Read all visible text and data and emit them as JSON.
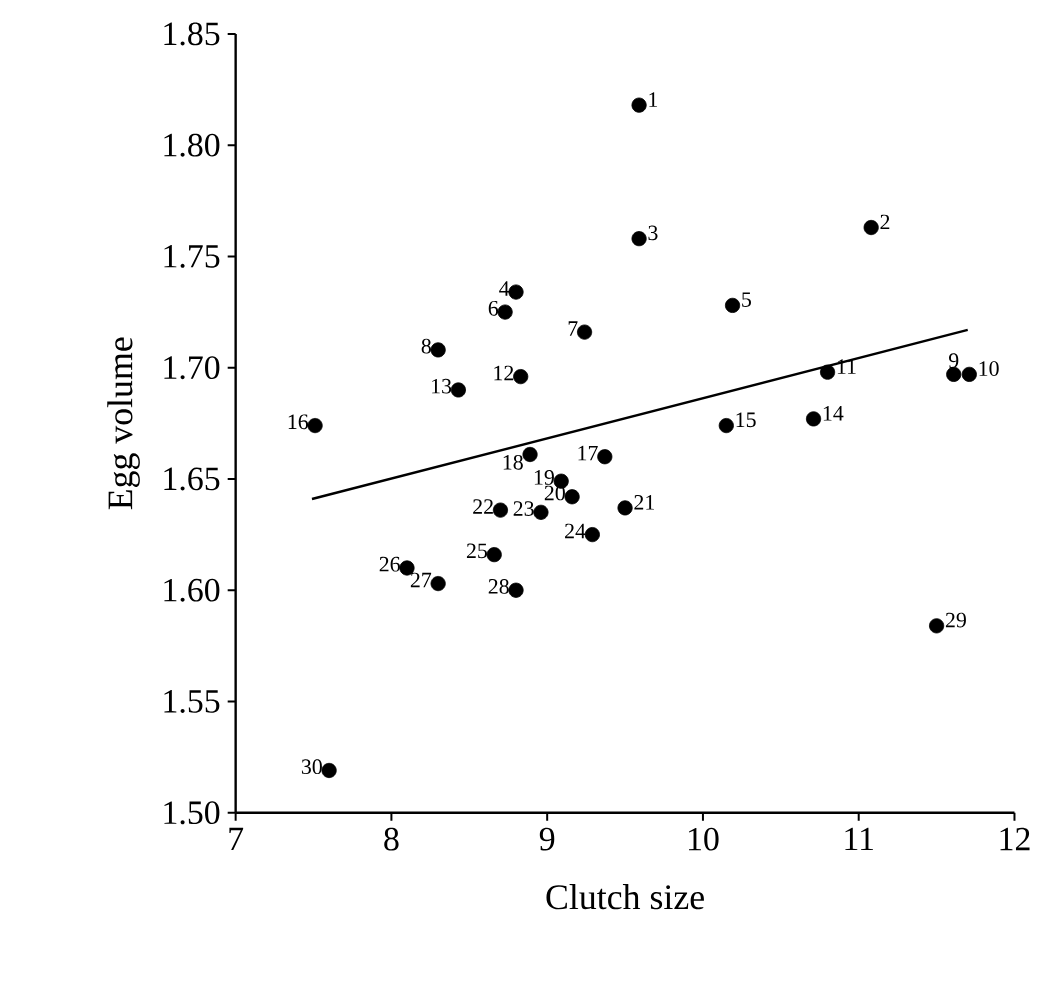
{
  "chart_data": {
    "type": "scatter",
    "xlabel": "Clutch size",
    "ylabel": "Egg volume",
    "xlim": [
      7,
      12
    ],
    "ylim": [
      1.5,
      1.85
    ],
    "xticks": [
      7,
      8,
      9,
      10,
      11,
      12
    ],
    "yticks": [
      {
        "value": 1.5,
        "label": "1.50"
      },
      {
        "value": 1.55,
        "label": "1.55"
      },
      {
        "value": 1.6,
        "label": "1.60"
      },
      {
        "value": 1.65,
        "label": "1.65"
      },
      {
        "value": 1.7,
        "label": "1.70"
      },
      {
        "value": 1.75,
        "label": "1.75"
      },
      {
        "value": 1.8,
        "label": "1.80"
      },
      {
        "value": 1.85,
        "label": "1.85"
      }
    ],
    "grid": false,
    "series": [
      {
        "color": "#000000",
        "marker": "circle",
        "x": [
          9.59,
          11.08,
          9.59,
          8.8,
          10.19,
          8.73,
          9.24,
          8.3,
          11.61,
          11.71,
          10.8,
          8.83,
          8.43,
          10.71,
          10.15,
          7.51,
          9.37,
          8.89,
          9.09,
          9.16,
          9.5,
          8.7,
          8.96,
          9.29,
          8.66,
          8.1,
          8.3,
          8.8,
          11.5,
          7.6
        ],
        "values": [
          1.818,
          1.763,
          1.758,
          1.734,
          1.728,
          1.725,
          1.716,
          1.708,
          1.697,
          1.697,
          1.698,
          1.696,
          1.69,
          1.677,
          1.674,
          1.674,
          1.66,
          1.661,
          1.649,
          1.642,
          1.637,
          1.636,
          1.635,
          1.625,
          1.616,
          1.61,
          1.603,
          1.6,
          1.584,
          1.519
        ]
      },
      {
        "type": "line",
        "marker": "none",
        "color": "#000000",
        "x": [
          7.49,
          11.7
        ],
        "values": [
          1.641,
          1.717
        ]
      }
    ],
    "annotations": [
      {
        "text": "1",
        "x": 9.59,
        "y": 1.818
      },
      {
        "text": "2",
        "x": 11.08,
        "y": 1.763
      },
      {
        "text": "3",
        "x": 9.59,
        "y": 1.758
      },
      {
        "text": "4",
        "x": 8.8,
        "y": 1.734
      },
      {
        "text": "5",
        "x": 10.19,
        "y": 1.728
      },
      {
        "text": "6",
        "x": 8.73,
        "y": 1.725
      },
      {
        "text": "7",
        "x": 9.24,
        "y": 1.716
      },
      {
        "text": "8",
        "x": 8.3,
        "y": 1.708
      },
      {
        "text": "9",
        "x": 11.61,
        "y": 1.697
      },
      {
        "text": "10",
        "x": 11.71,
        "y": 1.697
      },
      {
        "text": "11",
        "x": 10.8,
        "y": 1.698
      },
      {
        "text": "12",
        "x": 8.83,
        "y": 1.696
      },
      {
        "text": "13",
        "x": 8.43,
        "y": 1.69
      },
      {
        "text": "14",
        "x": 10.71,
        "y": 1.677
      },
      {
        "text": "15",
        "x": 10.15,
        "y": 1.674
      },
      {
        "text": "16",
        "x": 7.51,
        "y": 1.674
      },
      {
        "text": "17",
        "x": 9.37,
        "y": 1.66
      },
      {
        "text": "18",
        "x": 8.89,
        "y": 1.661
      },
      {
        "text": "19",
        "x": 9.09,
        "y": 1.649
      },
      {
        "text": "20",
        "x": 9.16,
        "y": 1.642
      },
      {
        "text": "21",
        "x": 9.5,
        "y": 1.637
      },
      {
        "text": "22",
        "x": 8.7,
        "y": 1.636
      },
      {
        "text": "23",
        "x": 8.96,
        "y": 1.635
      },
      {
        "text": "24",
        "x": 9.29,
        "y": 1.625
      },
      {
        "text": "25",
        "x": 8.66,
        "y": 1.616
      },
      {
        "text": "26",
        "x": 8.1,
        "y": 1.61
      },
      {
        "text": "27",
        "x": 8.3,
        "y": 1.603
      },
      {
        "text": "28",
        "x": 8.8,
        "y": 1.6
      },
      {
        "text": "29",
        "x": 11.5,
        "y": 1.584
      },
      {
        "text": "30",
        "x": 7.6,
        "y": 1.519
      }
    ]
  }
}
